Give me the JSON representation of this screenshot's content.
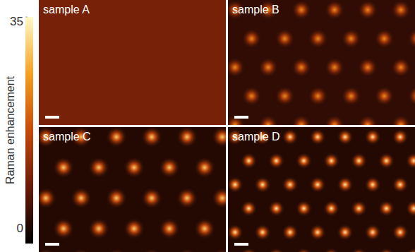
{
  "chart_data": {
    "type": "heatmap",
    "colorbar": {
      "label": "Raman enhancement",
      "range": [
        0,
        35
      ],
      "ticks": [
        0,
        35
      ]
    },
    "panels": [
      {
        "title": "sample A",
        "background": 10,
        "peak": 10
      },
      {
        "title": "sample B",
        "background": 4,
        "peak": 24
      },
      {
        "title": "sample C",
        "background": 3,
        "peak": 30
      },
      {
        "title": "sample D",
        "background": 3,
        "peak": 33
      }
    ]
  }
}
